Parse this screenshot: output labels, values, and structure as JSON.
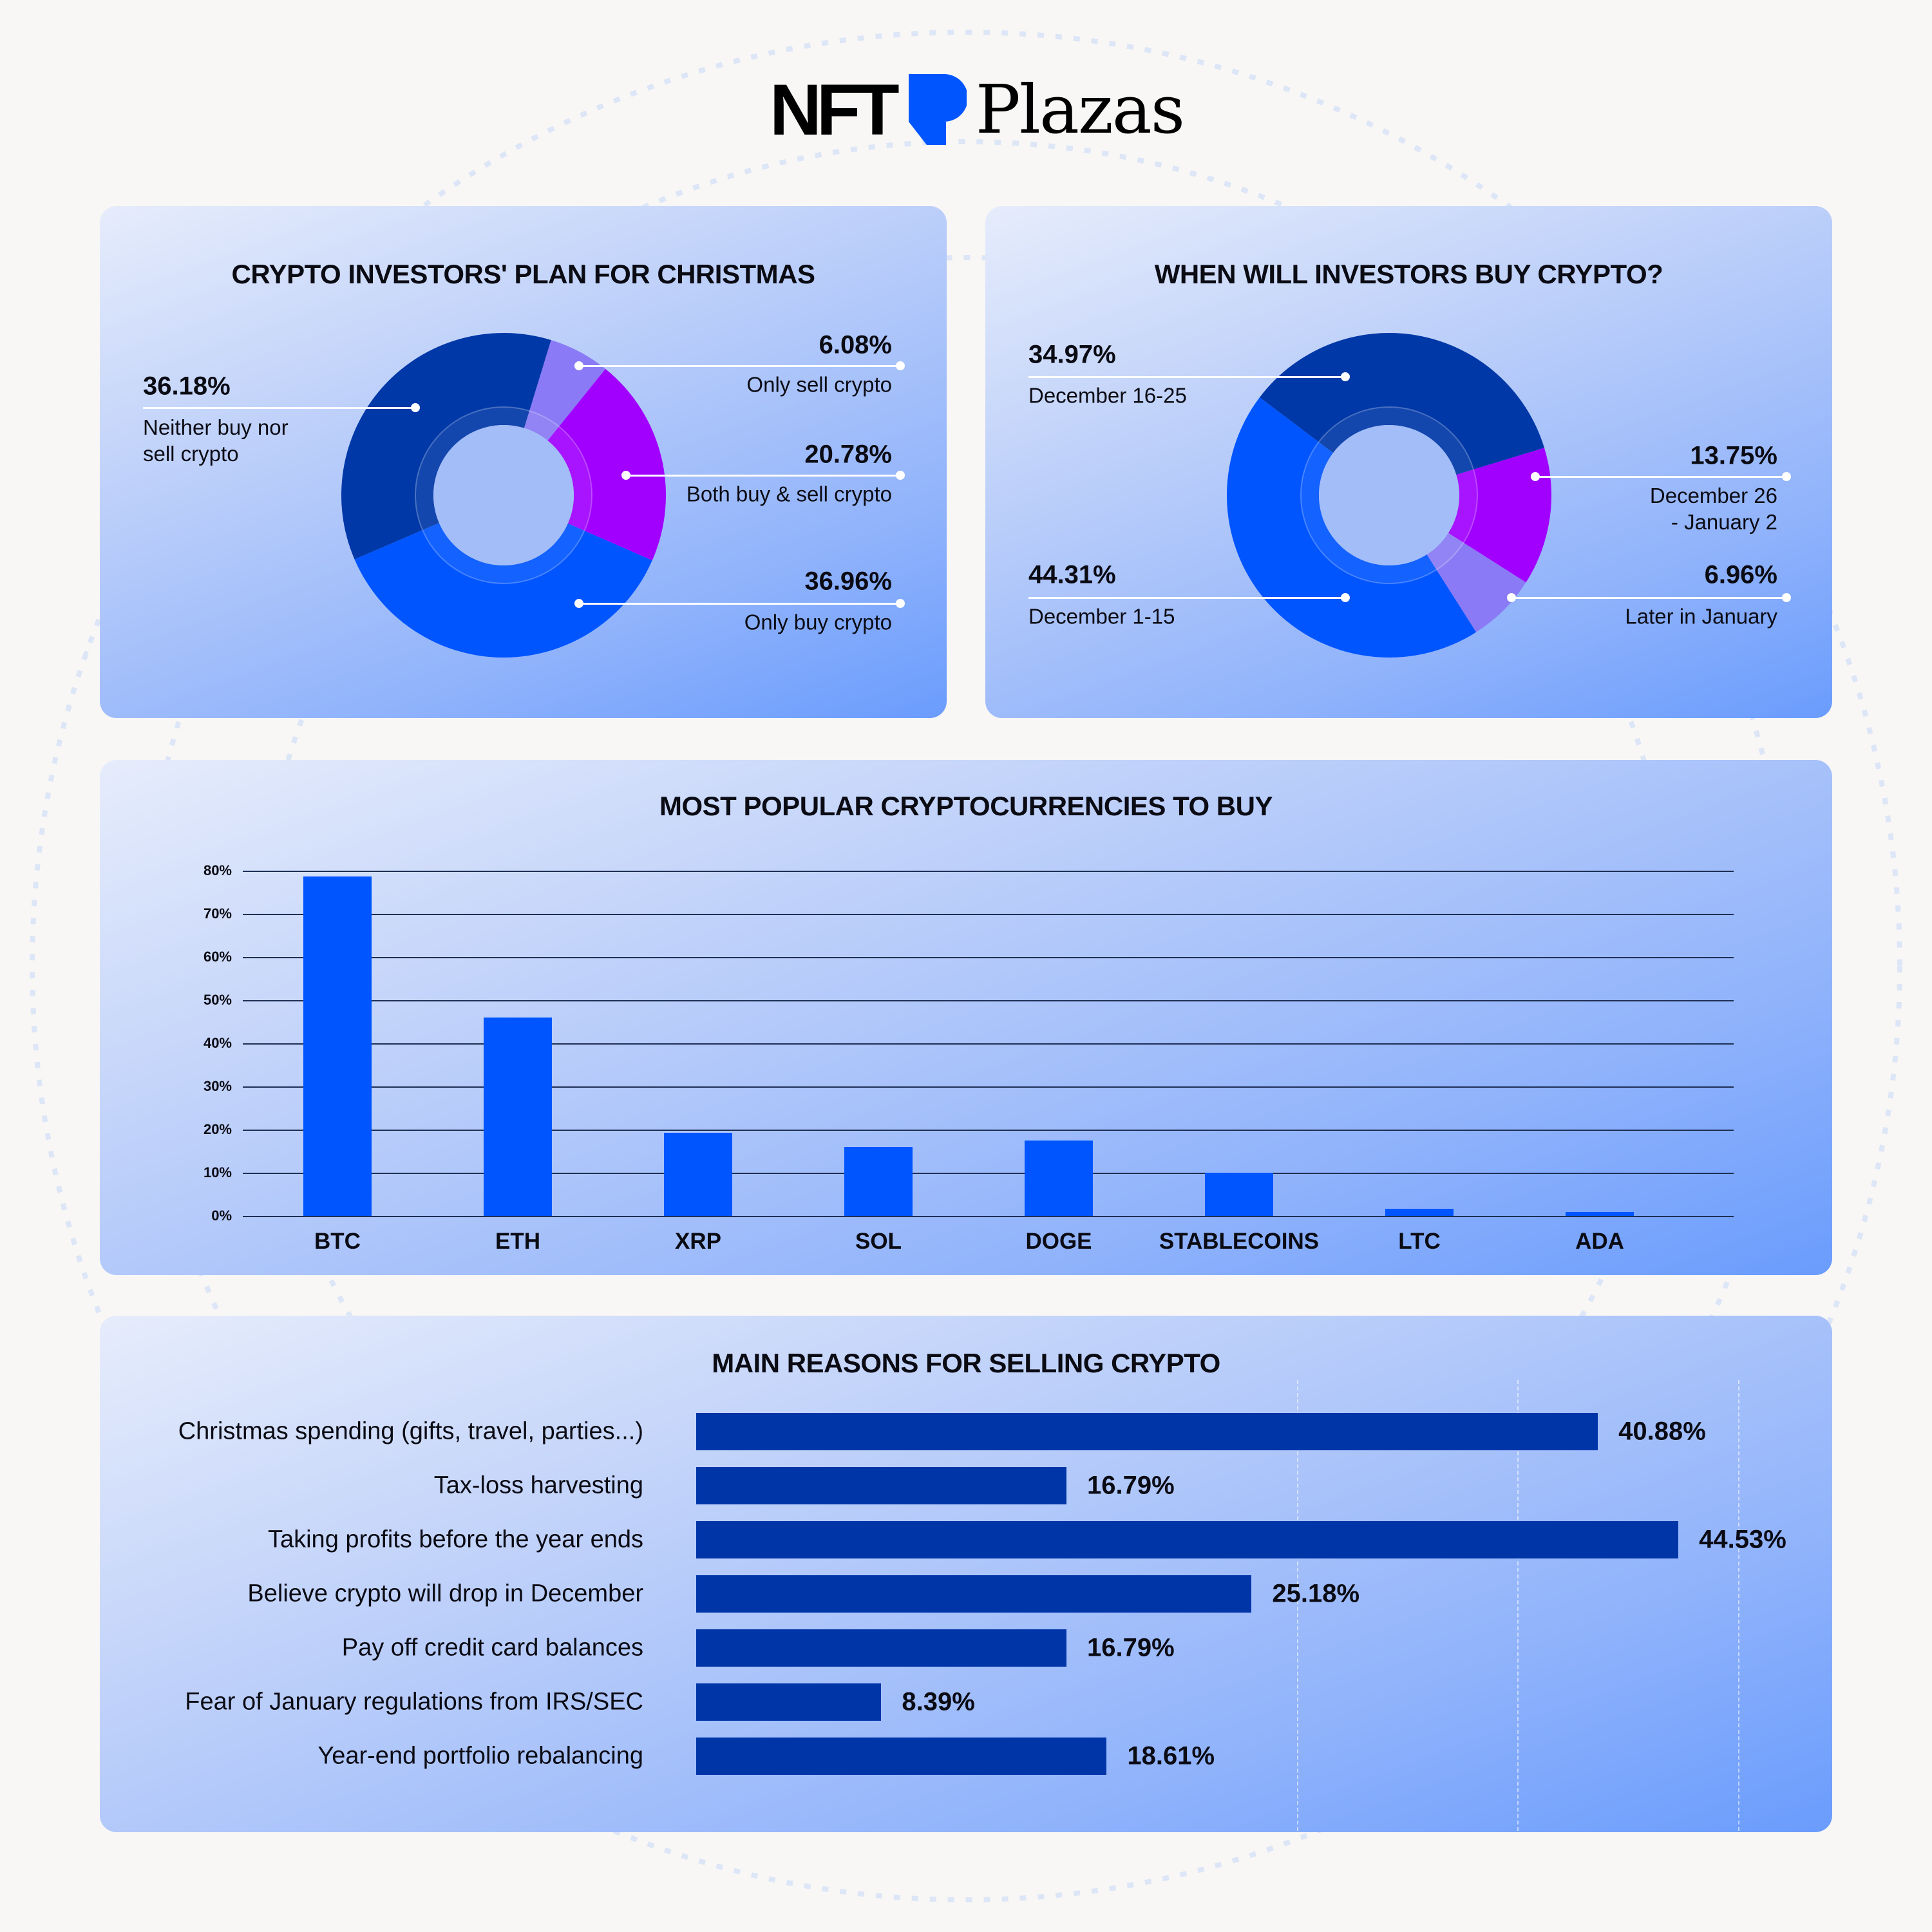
{
  "logo": {
    "text_bold": "NFT",
    "text_serif": "Plazas"
  },
  "colors": {
    "navy": "#0038a8",
    "blue": "#0055ff",
    "purple": "#a100ff",
    "lavender": "#8a7af5",
    "hbar": "#0035a8"
  },
  "chart_data": [
    {
      "type": "pie",
      "title": "CRYPTO INVESTORS' PLAN FOR CHRISTMAS",
      "slices": [
        {
          "label": "Only sell crypto",
          "value": 6.08,
          "display": "6.08%",
          "color": "#8a7af5"
        },
        {
          "label": "Both buy & sell crypto",
          "value": 20.78,
          "display": "20.78%",
          "color": "#a100ff"
        },
        {
          "label": "Only buy crypto",
          "value": 36.96,
          "display": "36.96%",
          "color": "#0055ff"
        },
        {
          "label": "Neither buy nor sell crypto",
          "value": 36.18,
          "display": "36.18%",
          "color": "#0038a8"
        }
      ]
    },
    {
      "type": "pie",
      "title": "WHEN WILL INVESTORS BUY CRYPTO?",
      "slices": [
        {
          "label": "December 26 - January 2",
          "label_line1": "December 26",
          "label_line2": "- January 2",
          "value": 13.75,
          "display": "13.75%",
          "color": "#a100ff"
        },
        {
          "label": "Later in January",
          "value": 6.96,
          "display": "6.96%",
          "color": "#8a7af5"
        },
        {
          "label": "December 1-15",
          "value": 44.31,
          "display": "44.31%",
          "color": "#0055ff"
        },
        {
          "label": "December 16-25",
          "value": 34.97,
          "display": "34.97%",
          "color": "#0038a8"
        }
      ]
    },
    {
      "type": "bar",
      "title": "MOST POPULAR CRYPTOCURRENCIES TO BUY",
      "categories": [
        "BTC",
        "ETH",
        "XRP",
        "SOL",
        "DOGE",
        "STABLECOINS",
        "LTC",
        "ADA"
      ],
      "values": [
        78.6,
        45.9,
        19.2,
        15.9,
        17.5,
        10.0,
        1.6,
        0.9
      ],
      "yticks": [
        "0%",
        "10%",
        "20%",
        "30%",
        "40%",
        "50%",
        "60%",
        "70%",
        "80%"
      ],
      "ylim": [
        0,
        80
      ],
      "grid": true,
      "color": "#0055ff"
    },
    {
      "type": "bar",
      "orientation": "horizontal",
      "title": "MAIN REASONS FOR SELLING CRYPTO",
      "categories": [
        "Christmas spending (gifts, travel, parties...)",
        "Tax-loss harvesting",
        "Taking profits before the year ends",
        "Believe crypto will drop in December",
        "Pay off credit card balances",
        "Fear of January regulations from IRS/SEC",
        "Year-end portfolio rebalancing"
      ],
      "values": [
        40.88,
        16.79,
        44.53,
        25.18,
        16.79,
        8.39,
        18.61
      ],
      "labels": [
        "40.88%",
        "16.79%",
        "44.53%",
        "25.18%",
        "16.79%",
        "8.39%",
        "18.61%"
      ],
      "color": "#0035a8"
    }
  ]
}
